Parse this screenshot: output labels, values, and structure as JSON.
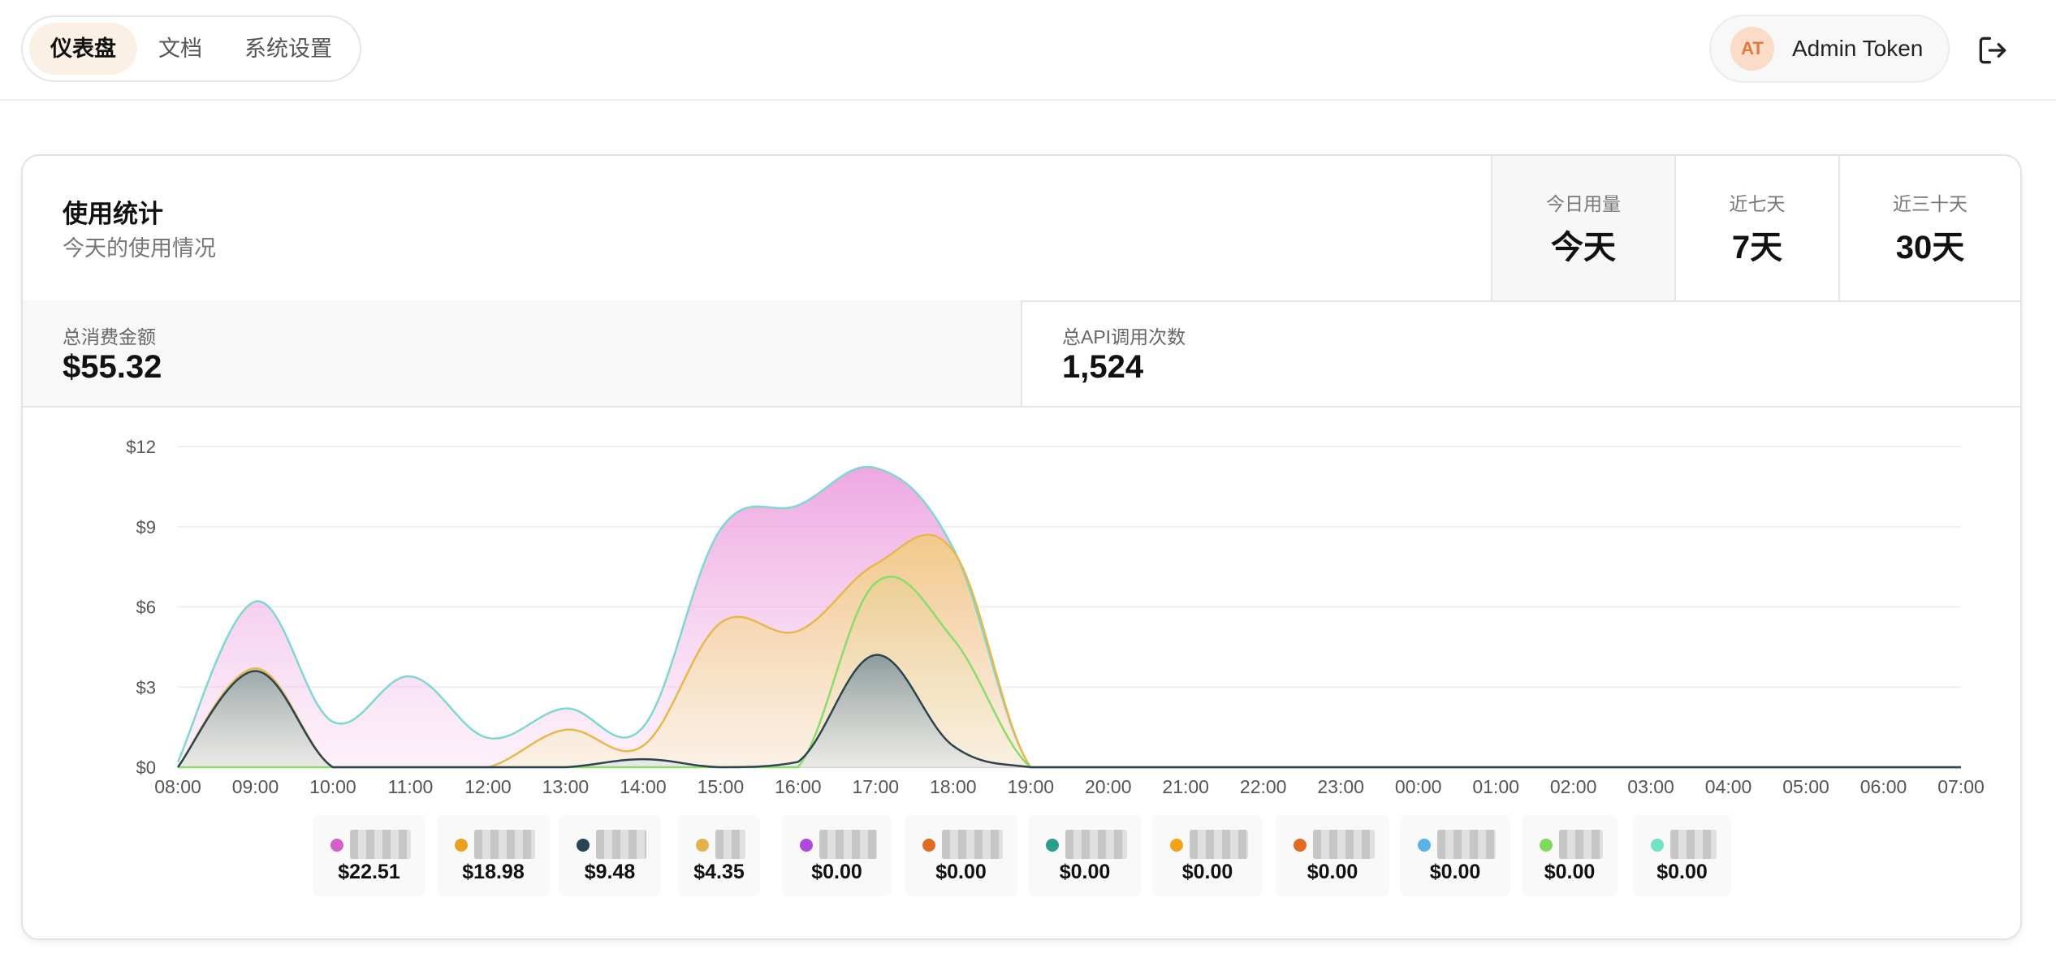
{
  "nav": {
    "items": [
      {
        "label": "仪表盘",
        "active": true
      },
      {
        "label": "文档",
        "active": false
      },
      {
        "label": "系统设置",
        "active": false
      }
    ]
  },
  "user": {
    "initials": "AT",
    "name": "Admin Token"
  },
  "icons": {
    "logout": "logout-icon"
  },
  "usage": {
    "title": "使用统计",
    "subtitle": "今天的使用情况",
    "ranges": [
      {
        "label": "今日用量",
        "value": "今天",
        "active": true
      },
      {
        "label": "近七天",
        "value": "7天",
        "active": false
      },
      {
        "label": "近三十天",
        "value": "30天",
        "active": false
      }
    ],
    "stats": [
      {
        "label": "总消费金额",
        "value": "$55.32"
      },
      {
        "label": "总API调用次数",
        "value": "1,524"
      }
    ]
  },
  "chart_data": {
    "type": "area",
    "x": [
      "08:00",
      "09:00",
      "10:00",
      "11:00",
      "12:00",
      "13:00",
      "14:00",
      "15:00",
      "16:00",
      "17:00",
      "18:00",
      "19:00",
      "20:00",
      "21:00",
      "22:00",
      "23:00",
      "00:00",
      "01:00",
      "02:00",
      "03:00",
      "04:00",
      "05:00",
      "06:00",
      "07:00"
    ],
    "y_ticks": [
      "$0",
      "$3",
      "$6",
      "$9",
      "$12"
    ],
    "ylim": [
      0,
      12
    ],
    "grid": true,
    "stacked_outlines": [
      {
        "color": "#7fd8cf",
        "values": [
          0.2,
          6.2,
          1.7,
          3.4,
          1.1,
          2.2,
          1.5,
          8.9,
          9.8,
          11.2,
          8.2,
          0,
          0,
          0,
          0,
          0,
          0,
          0,
          0,
          0,
          0,
          0,
          0,
          0
        ]
      },
      {
        "color": "#e6b84f",
        "values": [
          0,
          3.7,
          0,
          0,
          0,
          1.4,
          0.8,
          5.4,
          5.1,
          7.6,
          8.1,
          0,
          0,
          0,
          0,
          0,
          0,
          0,
          0,
          0,
          0,
          0,
          0,
          0
        ]
      },
      {
        "color": "#8bdc6b",
        "values": [
          0,
          0,
          0,
          0,
          0,
          0,
          0,
          0,
          0,
          6.9,
          4.8,
          0,
          0,
          0,
          0,
          0,
          0,
          0,
          0,
          0,
          0,
          0,
          0,
          0
        ]
      },
      {
        "color": "#2c4450",
        "values": [
          0,
          3.6,
          0,
          0,
          0,
          0,
          0.3,
          0,
          0.2,
          4.2,
          0.8,
          0,
          0,
          0,
          0,
          0,
          0,
          0,
          0,
          0,
          0,
          0,
          0,
          0
        ]
      }
    ],
    "legend": [
      {
        "color": "#d65fc7",
        "value": "$22.51"
      },
      {
        "color": "#e9a21f",
        "value": "$18.98"
      },
      {
        "color": "#264653",
        "value": "$9.48"
      },
      {
        "color": "#e2b24c",
        "value": "$4.35"
      },
      {
        "color": "#b048e0",
        "value": "$0.00"
      },
      {
        "color": "#e06b25",
        "value": "$0.00"
      },
      {
        "color": "#2a9d8f",
        "value": "$0.00"
      },
      {
        "color": "#f4a217",
        "value": "$0.00"
      },
      {
        "color": "#e06b25",
        "value": "$0.00"
      },
      {
        "color": "#56b4e9",
        "value": "$0.00"
      },
      {
        "color": "#7ddb5a",
        "value": "$0.00"
      },
      {
        "color": "#6fe3c4",
        "value": "$0.00"
      }
    ]
  }
}
